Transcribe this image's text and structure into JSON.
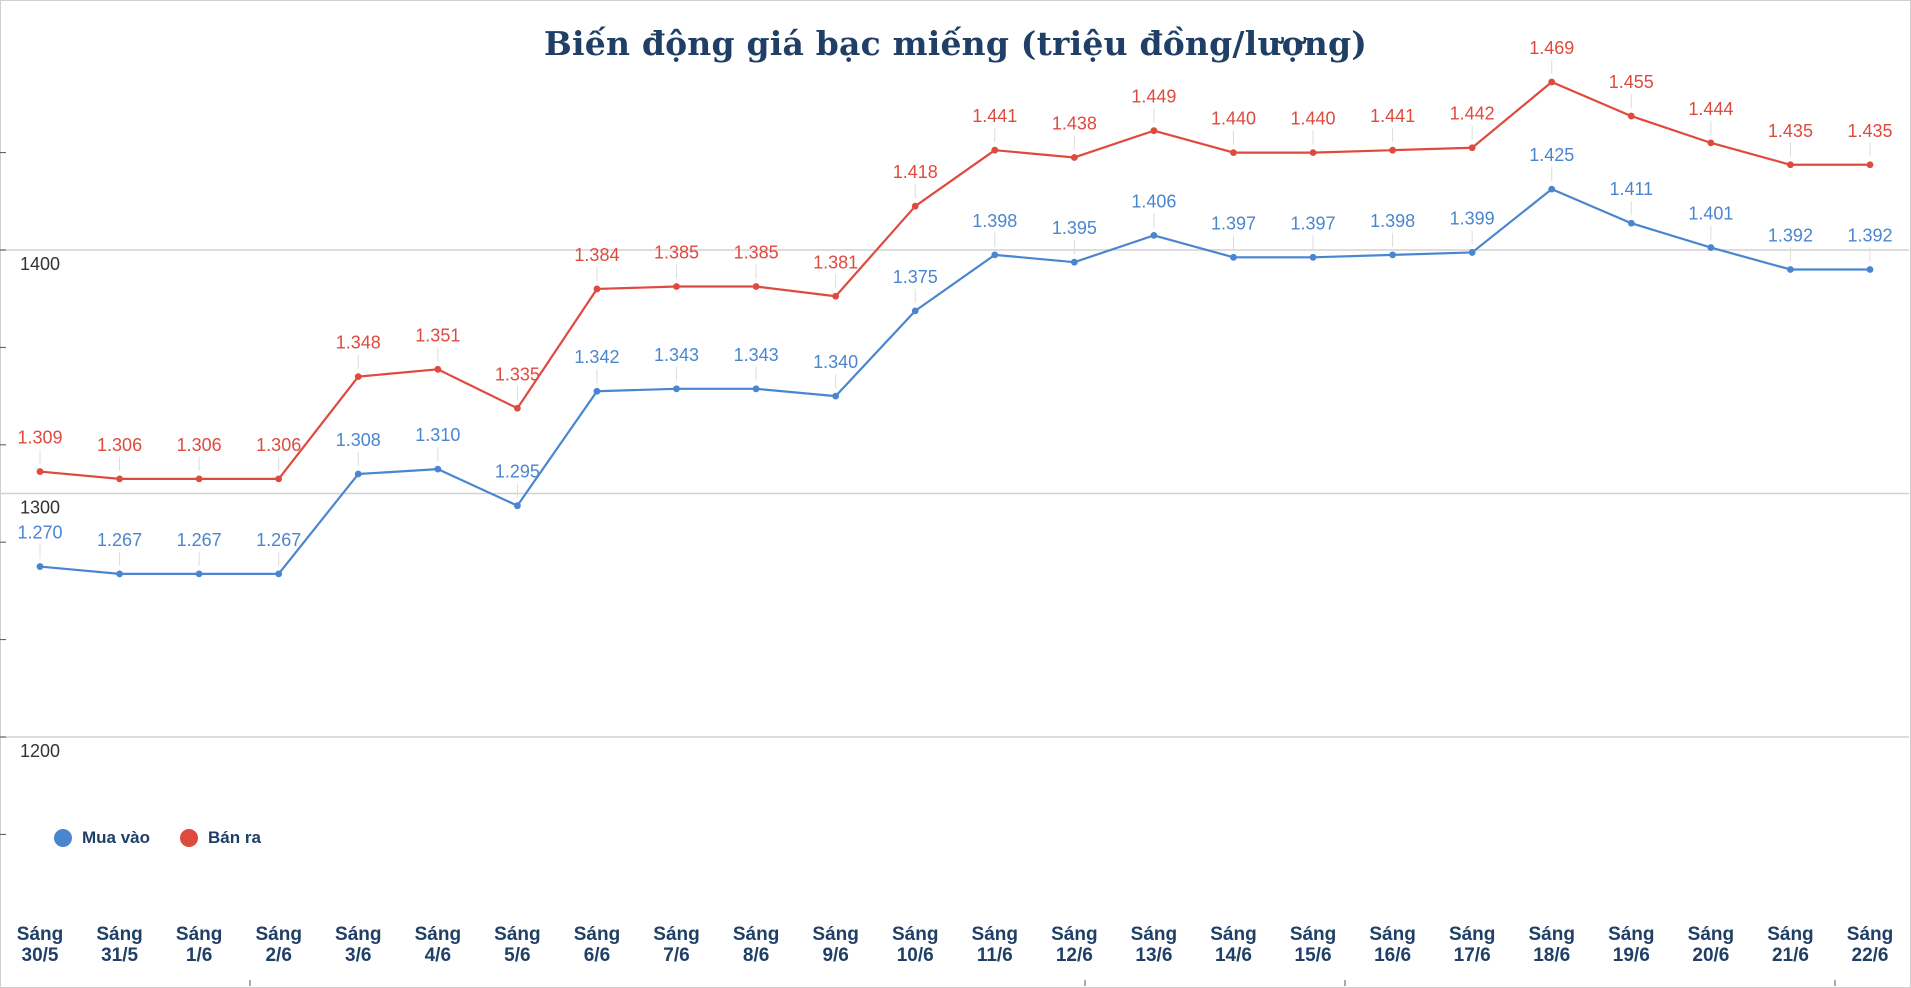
{
  "chart_data": {
    "type": "line",
    "title": "Biến động giá bạc miếng (triệu đồng/lượng)",
    "categories": [
      "Sáng 30/5",
      "Sáng 31/5",
      "Sáng 1/6",
      "Sáng 2/6",
      "Sáng 3/6",
      "Sáng 4/6",
      "Sáng 5/6",
      "Sáng 6/6",
      "Sáng 7/6",
      "Sáng 8/6",
      "Sáng 9/6",
      "Sáng 10/6",
      "Sáng 11/6",
      "Sáng 12/6",
      "Sáng 13/6",
      "Sáng 14/6",
      "Sáng 15/6",
      "Sáng 16/6",
      "Sáng 17/6",
      "Sáng 18/6",
      "Sáng 19/6",
      "Sáng 20/6",
      "Sáng 21/6",
      "Sáng 22/6"
    ],
    "series": [
      {
        "name": "Mua vào",
        "color": "#4a86d0",
        "values": [
          1270,
          1267,
          1267,
          1267,
          1308,
          1310,
          1295,
          1342,
          1343,
          1343,
          1340,
          1375,
          1398,
          1395,
          1406,
          1397,
          1397,
          1398,
          1399,
          1425,
          1411,
          1401,
          1392,
          1392
        ],
        "labels": [
          "1.270",
          "1.267",
          "1.267",
          "1.267",
          "1.308",
          "1.310",
          "1.295",
          "1.342",
          "1.343",
          "1.343",
          "1.340",
          "1.375",
          "1.398",
          "1.395",
          "1.406",
          "1.397",
          "1.397",
          "1.398",
          "1.399",
          "1.425",
          "1.411",
          "1.401",
          "1.392",
          "1.392"
        ]
      },
      {
        "name": "Bán ra",
        "color": "#df4a3f",
        "values": [
          1309,
          1306,
          1306,
          1306,
          1348,
          1351,
          1335,
          1384,
          1385,
          1385,
          1381,
          1418,
          1441,
          1438,
          1449,
          1440,
          1440,
          1441,
          1442,
          1469,
          1455,
          1444,
          1435,
          1435
        ],
        "labels": [
          "1.309",
          "1.306",
          "1.306",
          "1.306",
          "1.348",
          "1.351",
          "1.335",
          "1.384",
          "1.385",
          "1.385",
          "1.381",
          "1.418",
          "1.441",
          "1.438",
          "1.449",
          "1.440",
          "1.440",
          "1.441",
          "1.442",
          "1.469",
          "1.455",
          "1.444",
          "1.435",
          "1.435"
        ]
      }
    ],
    "yticks": [
      1200,
      1300,
      1400
    ],
    "ylim": [
      1130,
      1500
    ],
    "grid": true,
    "legend_position": "bottom-left",
    "xlabel": "",
    "ylabel": ""
  },
  "legend": {
    "buy_label": "Mua vào",
    "sell_label": "Bán ra"
  }
}
